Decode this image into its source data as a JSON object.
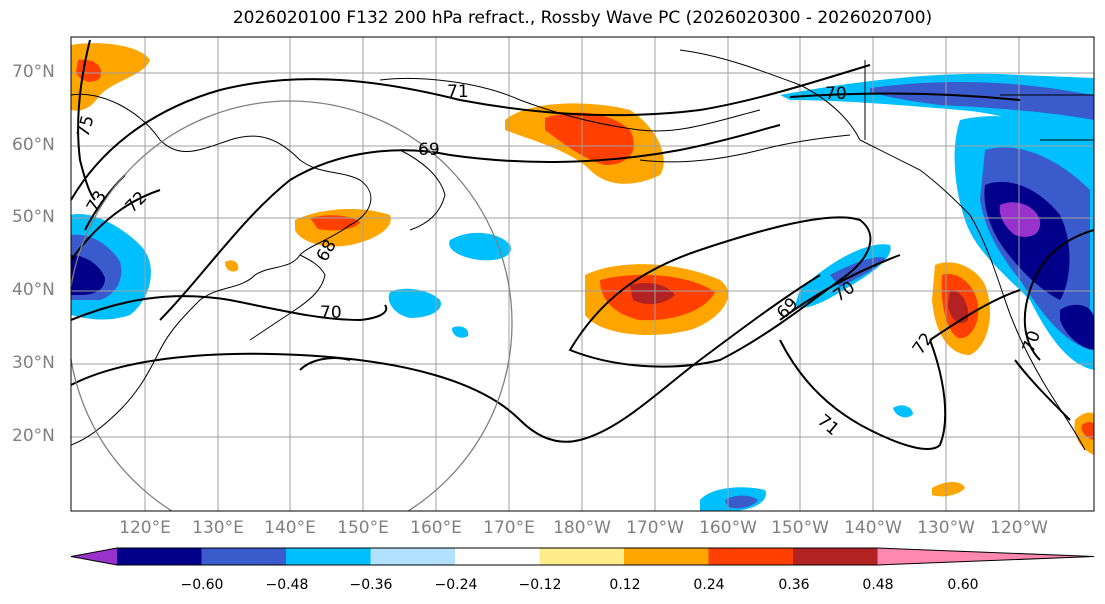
{
  "title": "2026020100 F132 200 hPa refract., Rossby Wave PC (2026020300 - 2026020700)",
  "lat_labels": [
    "70°N",
    "60°N",
    "50°N",
    "40°N",
    "30°N",
    "20°N"
  ],
  "lon_labels": [
    "120°E",
    "130°E",
    "140°E",
    "150°E",
    "160°E",
    "170°E",
    "180°W",
    "170°W",
    "160°W",
    "150°W",
    "140°W",
    "130°W",
    "120°W"
  ],
  "contour_labels": [
    "71",
    "70",
    "69",
    "75",
    "73",
    "72",
    "70",
    "69",
    "70",
    "71",
    "72",
    "70",
    "68"
  ],
  "colorbar": {
    "colors": [
      "#9932cc",
      "#00008b",
      "#3a5bcb",
      "#00bfff",
      "#b0e2ff",
      "#ffffff",
      "#ffec8b",
      "#ffa500",
      "#ff4000",
      "#b22222",
      "#ff88b0"
    ],
    "tick_labels": [
      "−0.60",
      "−0.48",
      "−0.36",
      "−0.24",
      "−0.12",
      "0.12",
      "0.24",
      "0.36",
      "0.48",
      "0.60"
    ]
  },
  "colors": {
    "axis_label": "#808080",
    "contour": "#000000",
    "grid": "#a0a0a0",
    "coast": "#000000"
  }
}
